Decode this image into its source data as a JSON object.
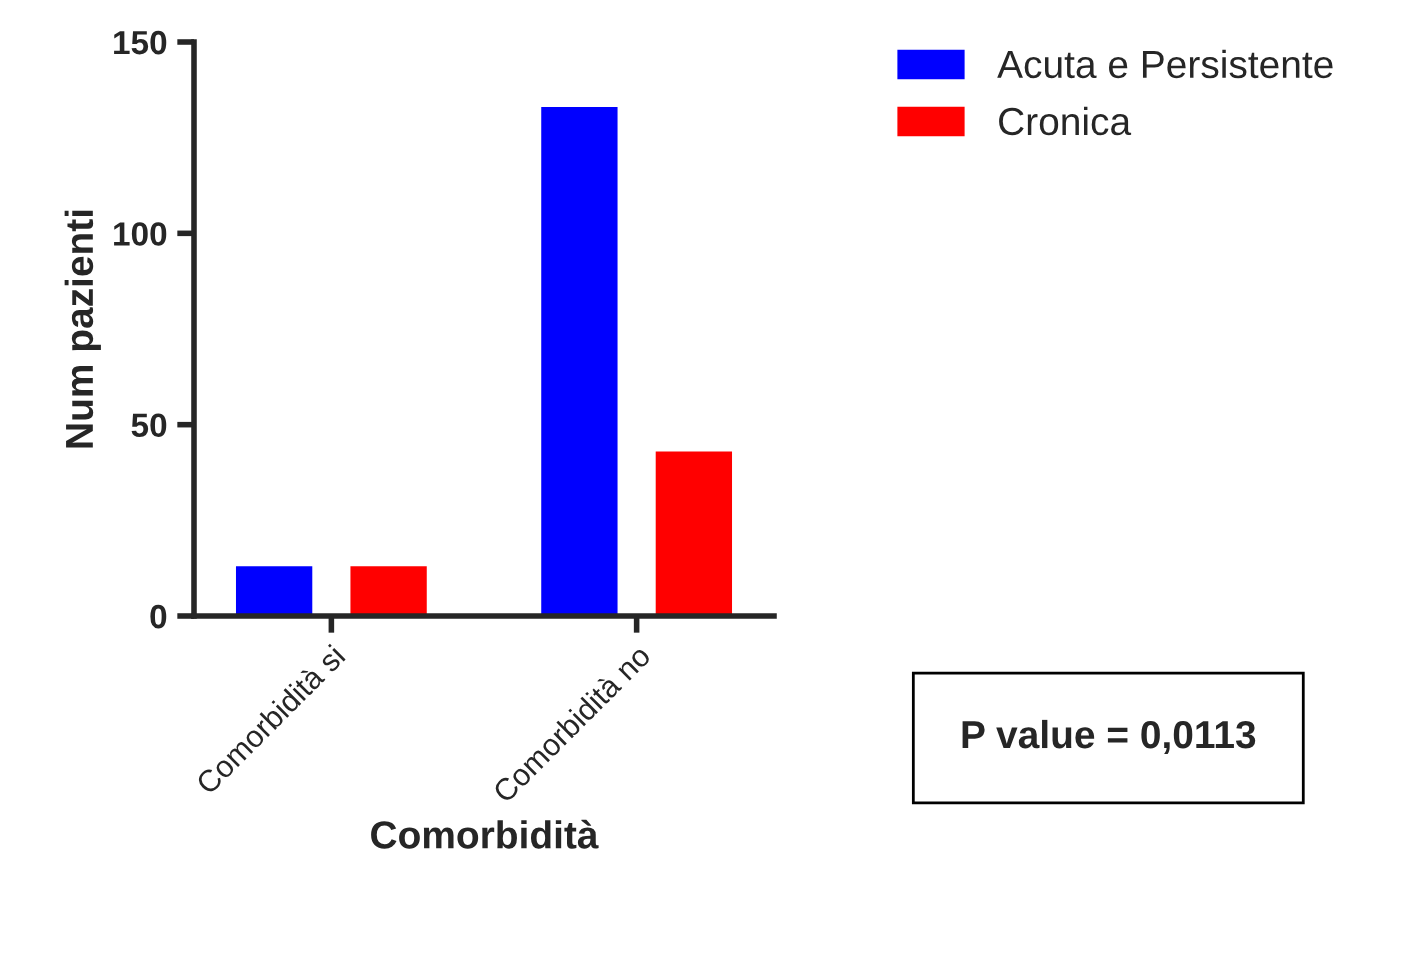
{
  "chart_data": {
    "type": "bar",
    "xlabel": "Comorbidità",
    "ylabel": "Num pazienti",
    "categories": [
      "Comorbidità si",
      "Comorbidità no"
    ],
    "series": [
      {
        "name": "Acuta e Persistente",
        "color": "#0000ff",
        "values": [
          13,
          133
        ]
      },
      {
        "name": "Cronica",
        "color": "#ff0000",
        "values": [
          13,
          43
        ]
      }
    ],
    "ylim": [
      0,
      150
    ],
    "yticks": [
      0,
      50,
      100,
      150
    ],
    "grid": false,
    "legend": "top right",
    "annotations": [
      "P value = 0,0113"
    ]
  }
}
